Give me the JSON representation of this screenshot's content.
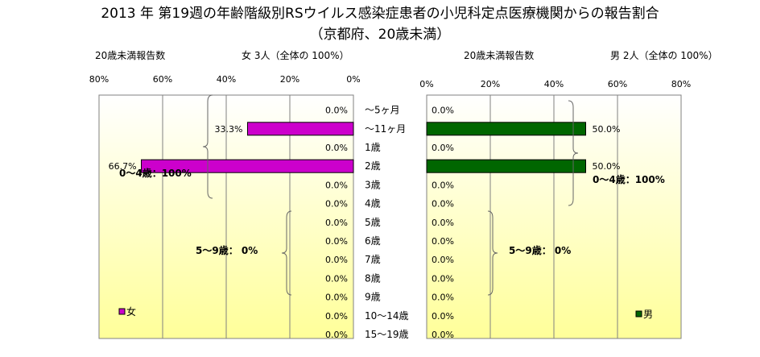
{
  "title": "2013 年 第19週の年齢階級別RSウイルス感染症患者の小児科定点医療機関からの報告割合",
  "subtitle": "（京都府、20歳未満）",
  "colors": {
    "female": "#cc00cc",
    "male": "#006600",
    "plot_bg_top": "#ffffff",
    "plot_bg_bottom": "#ffff99",
    "grid": "#808080"
  },
  "chart_data": [
    {
      "type": "bar",
      "orientation": "horizontal-reversed",
      "panel_caption": "20歳未満報告数",
      "summary_label": "女 3人（全体の 100%）",
      "legend": "女",
      "legend_position": "bottom-left",
      "xlim": [
        0,
        80
      ],
      "ticks": [
        "80%",
        "60%",
        "40%",
        "20%",
        "0%"
      ],
      "categories": [
        "～5ヶ月",
        "～11ヶ月",
        "1歳",
        "2歳",
        "3歳",
        "4歳",
        "5歳",
        "6歳",
        "7歳",
        "8歳",
        "9歳",
        "10～14歳",
        "15～19歳"
      ],
      "values": [
        0,
        33.3,
        0,
        66.7,
        0,
        0,
        0,
        0,
        0,
        0,
        0,
        0,
        0
      ],
      "data_labels": [
        "0.0%",
        "33.3%",
        "0.0%",
        "66.7%",
        "0.0%",
        "0.0%",
        "0.0%",
        "0.0%",
        "0.0%",
        "0.0%",
        "0.0%",
        "0.0%",
        "0.0%"
      ],
      "annotations": [
        "0～4歳：100%",
        "5～9歳：  0%"
      ]
    },
    {
      "type": "bar",
      "orientation": "horizontal",
      "panel_caption": "20歳未満報告数",
      "summary_label": "男  2人（全体の  100%）",
      "legend": "男",
      "legend_position": "bottom-right",
      "xlim": [
        0,
        80
      ],
      "ticks": [
        "0%",
        "20%",
        "40%",
        "60%",
        "80%"
      ],
      "values": [
        0,
        50,
        0,
        50,
        0,
        0,
        0,
        0,
        0,
        0,
        0,
        0,
        0
      ],
      "data_labels": [
        "0.0%",
        "50.0%",
        "0.0%",
        "50.0%",
        "0.0%",
        "0.0%",
        "0.0%",
        "0.0%",
        "0.0%",
        "0.0%",
        "0.0%",
        "0.0%",
        "0.0%"
      ],
      "annotations": [
        "0～4歳：100%",
        "5～9歳：  0%"
      ]
    }
  ]
}
